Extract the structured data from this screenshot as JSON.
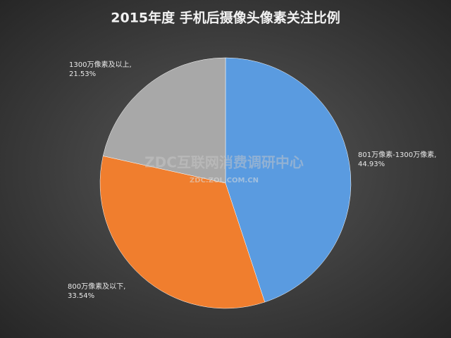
{
  "chart_data": {
    "type": "pie",
    "title": "2015年度 手机后摄像头像素关注比例",
    "values": [
      44.93,
      33.54,
      21.53
    ],
    "value_labels": [
      "801万像素-1300万像素, 44.93%",
      "800万像素及以下, 33.54%",
      "1300万像素及以上, 21.53%"
    ],
    "colors": [
      "#5a9be0",
      "#f07e2e",
      "#a8a8a8"
    ],
    "watermark": [
      "ZDC互联网消费调研中心",
      "ZDC.ZOL.COM.CN"
    ]
  }
}
